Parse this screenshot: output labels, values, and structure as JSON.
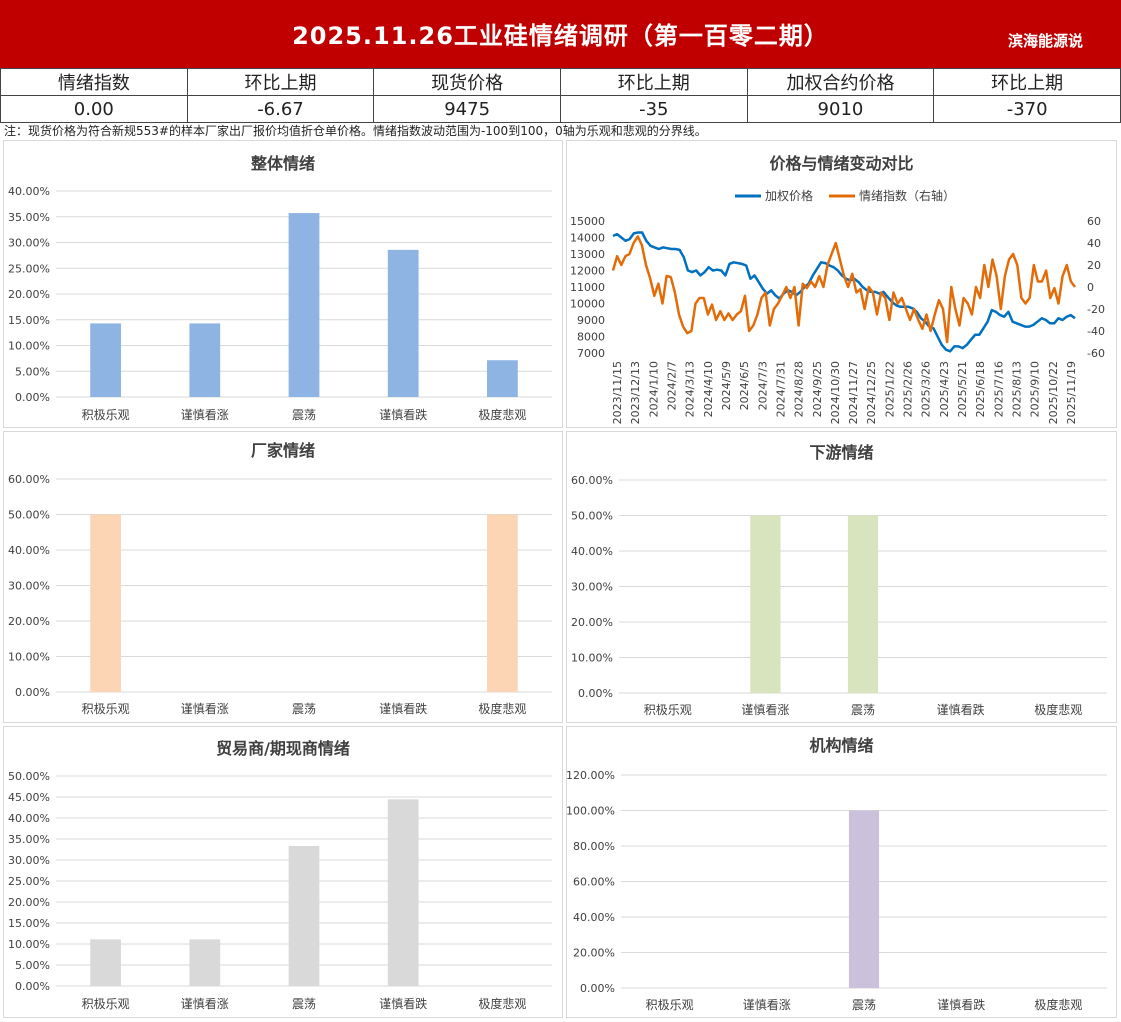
{
  "header": {
    "title": "2025.11.26工业硅情绪调研（第一百零二期）",
    "brand": "滨海能源说"
  },
  "kpi": {
    "headers": [
      "情绪指数",
      "环比上期",
      "现货价格",
      "环比上期",
      "加权合约价格",
      "环比上期"
    ],
    "values": [
      "0.00",
      "-6.67",
      "9475",
      "-35",
      "9010",
      "-370"
    ]
  },
  "note": "注：现货价格为符合新规553#的样本厂家出厂报价均值折仓单价格。情绪指数波动范围为-100到100，0轴为乐观和悲观的分界线。",
  "colors": {
    "header_bg": "#c00000",
    "overall": "#8eb4e3",
    "producer": "#fcd5b5",
    "downstream": "#d7e4bd",
    "trader": "#d9d9d9",
    "institution": "#ccc1da",
    "price_line": "#0070c0",
    "sentiment_line": "#e36c09"
  },
  "chart_data": [
    {
      "id": "overall",
      "type": "bar",
      "title": "整体情绪",
      "categories": [
        "积极乐观",
        "谨慎看涨",
        "震荡",
        "谨慎看跌",
        "极度悲观"
      ],
      "values": [
        14.29,
        14.29,
        35.71,
        28.57,
        7.14
      ],
      "ylim": [
        0,
        40
      ],
      "yticks": [
        "0.00%",
        "5.00%",
        "10.00%",
        "15.00%",
        "20.00%",
        "25.00%",
        "30.00%",
        "35.00%",
        "40.00%"
      ],
      "color": "#8eb4e3"
    },
    {
      "id": "compare",
      "type": "line",
      "title": "价格与情绪变动对比",
      "legend": [
        "加权价格",
        "情绪指数（右轴）"
      ],
      "legend_position": "top",
      "ylim": [
        7000,
        15000
      ],
      "y2lim": [
        -60,
        60
      ],
      "yticks": [
        "7000",
        "8000",
        "9000",
        "10000",
        "11000",
        "12000",
        "13000",
        "14000",
        "15000"
      ],
      "y2ticks": [
        "-60",
        "-40",
        "-20",
        "0",
        "20",
        "40",
        "60"
      ],
      "xticks": [
        "2023/11/15",
        "2023/12/13",
        "2024/1/10",
        "2024/2/7",
        "2024/3/13",
        "2024/4/10",
        "2024/5/9",
        "2024/6/5",
        "2024/7/3",
        "2024/7/31",
        "2024/8/28",
        "2024/9/25",
        "2024/10/30",
        "2024/11/27",
        "2024/12/25",
        "2025/1/22",
        "2025/2/26",
        "2025/3/26",
        "2025/4/23",
        "2025/5/21",
        "2025/6/18",
        "2025/7/16",
        "2025/8/13",
        "2025/9/10",
        "2025/10/22",
        "2025/11/19"
      ],
      "series": [
        {
          "name": "加权价格",
          "axis": "left",
          "values": [
            14100,
            14200,
            14000,
            13800,
            13900,
            14250,
            14300,
            14300,
            13800,
            13500,
            13400,
            13300,
            13400,
            13350,
            13300,
            13300,
            13250,
            12800,
            12000,
            11900,
            12000,
            11700,
            11900,
            12200,
            12000,
            12050,
            12000,
            11700,
            12400,
            12500,
            12450,
            12400,
            12300,
            11500,
            11700,
            11300,
            10900,
            10600,
            10800,
            10500,
            10300,
            10600,
            10800,
            10700,
            10500,
            10700,
            11000,
            11200,
            11700,
            12100,
            12500,
            12450,
            12300,
            12200,
            12000,
            11700,
            11500,
            11400,
            11500,
            11300,
            11000,
            10800,
            10700,
            10700,
            10600,
            10700,
            10400,
            10100,
            9900,
            9800,
            9800,
            9800,
            9700,
            9500,
            9100,
            8900,
            8600,
            8500,
            8000,
            7500,
            7200,
            7100,
            7400,
            7400,
            7300,
            7500,
            7800,
            8100,
            8100,
            8500,
            8900,
            9600,
            9500,
            9300,
            9200,
            9500,
            8900,
            8800,
            8700,
            8600,
            8600,
            8700,
            8900,
            9100,
            9000,
            8800,
            8800,
            9100,
            9000,
            9200,
            9300,
            9100
          ],
          "color": "#0070c0"
        },
        {
          "name": "情绪指数（右轴）",
          "axis": "right",
          "values": [
            15,
            28,
            20,
            28,
            30,
            40,
            46,
            38,
            20,
            8,
            -8,
            3,
            -15,
            10,
            9,
            -5,
            -25,
            -36,
            -42,
            -40,
            -15,
            -10,
            -10,
            -25,
            -16,
            -30,
            -22,
            -30,
            -24,
            -30,
            -25,
            -22,
            -8,
            -40,
            -35,
            -25,
            -10,
            -5,
            -35,
            -20,
            -15,
            -8,
            0,
            -10,
            0,
            -35,
            3,
            -1,
            5,
            0,
            10,
            0,
            20,
            30,
            40,
            25,
            10,
            0,
            12,
            -5,
            -2,
            -20,
            0,
            -5,
            -25,
            -5,
            -10,
            -30,
            -5,
            -15,
            -10,
            -20,
            -30,
            -20,
            -30,
            -38,
            -25,
            -40,
            -25,
            -12,
            -20,
            -50,
            0,
            -20,
            -35,
            -10,
            -15,
            -25,
            0,
            -10,
            20,
            0,
            25,
            10,
            -20,
            10,
            25,
            30,
            20,
            -10,
            -15,
            -10,
            20,
            5,
            5,
            15,
            -10,
            -1,
            -15,
            10,
            20,
            5,
            0
          ],
          "color": "#e36c09"
        }
      ]
    },
    {
      "id": "producer",
      "type": "bar",
      "title": "厂家情绪",
      "categories": [
        "积极乐观",
        "谨慎看涨",
        "震荡",
        "谨慎看跌",
        "极度悲观"
      ],
      "values": [
        50,
        0,
        0,
        0,
        50
      ],
      "ylim": [
        0,
        60
      ],
      "yticks": [
        "0.00%",
        "10.00%",
        "20.00%",
        "30.00%",
        "40.00%",
        "50.00%",
        "60.00%"
      ],
      "color": "#fcd5b5"
    },
    {
      "id": "downstream",
      "type": "bar",
      "title": "下游情绪",
      "categories": [
        "积极乐观",
        "谨慎看涨",
        "震荡",
        "谨慎看跌",
        "极度悲观"
      ],
      "values": [
        0,
        50,
        50,
        0,
        0
      ],
      "ylim": [
        0,
        60
      ],
      "yticks": [
        "0.00%",
        "10.00%",
        "20.00%",
        "30.00%",
        "40.00%",
        "50.00%",
        "60.00%"
      ],
      "color": "#d7e4bd"
    },
    {
      "id": "trader",
      "type": "bar",
      "title": "贸易商/期现商情绪",
      "categories": [
        "积极乐观",
        "谨慎看涨",
        "震荡",
        "谨慎看跌",
        "极度悲观"
      ],
      "values": [
        11.11,
        11.11,
        33.33,
        44.44,
        0
      ],
      "ylim": [
        0,
        50
      ],
      "yticks": [
        "0.00%",
        "5.00%",
        "10.00%",
        "15.00%",
        "20.00%",
        "25.00%",
        "30.00%",
        "35.00%",
        "40.00%",
        "45.00%",
        "50.00%"
      ],
      "color": "#d9d9d9"
    },
    {
      "id": "institution",
      "type": "bar",
      "title": "机构情绪",
      "categories": [
        "积极乐观",
        "谨慎看涨",
        "震荡",
        "谨慎看跌",
        "极度悲观"
      ],
      "values": [
        0,
        0,
        100,
        0,
        0
      ],
      "ylim": [
        0,
        120
      ],
      "yticks": [
        "0.00%",
        "20.00%",
        "40.00%",
        "60.00%",
        "80.00%",
        "100.00%",
        "120.00%"
      ],
      "color": "#ccc1da"
    }
  ]
}
